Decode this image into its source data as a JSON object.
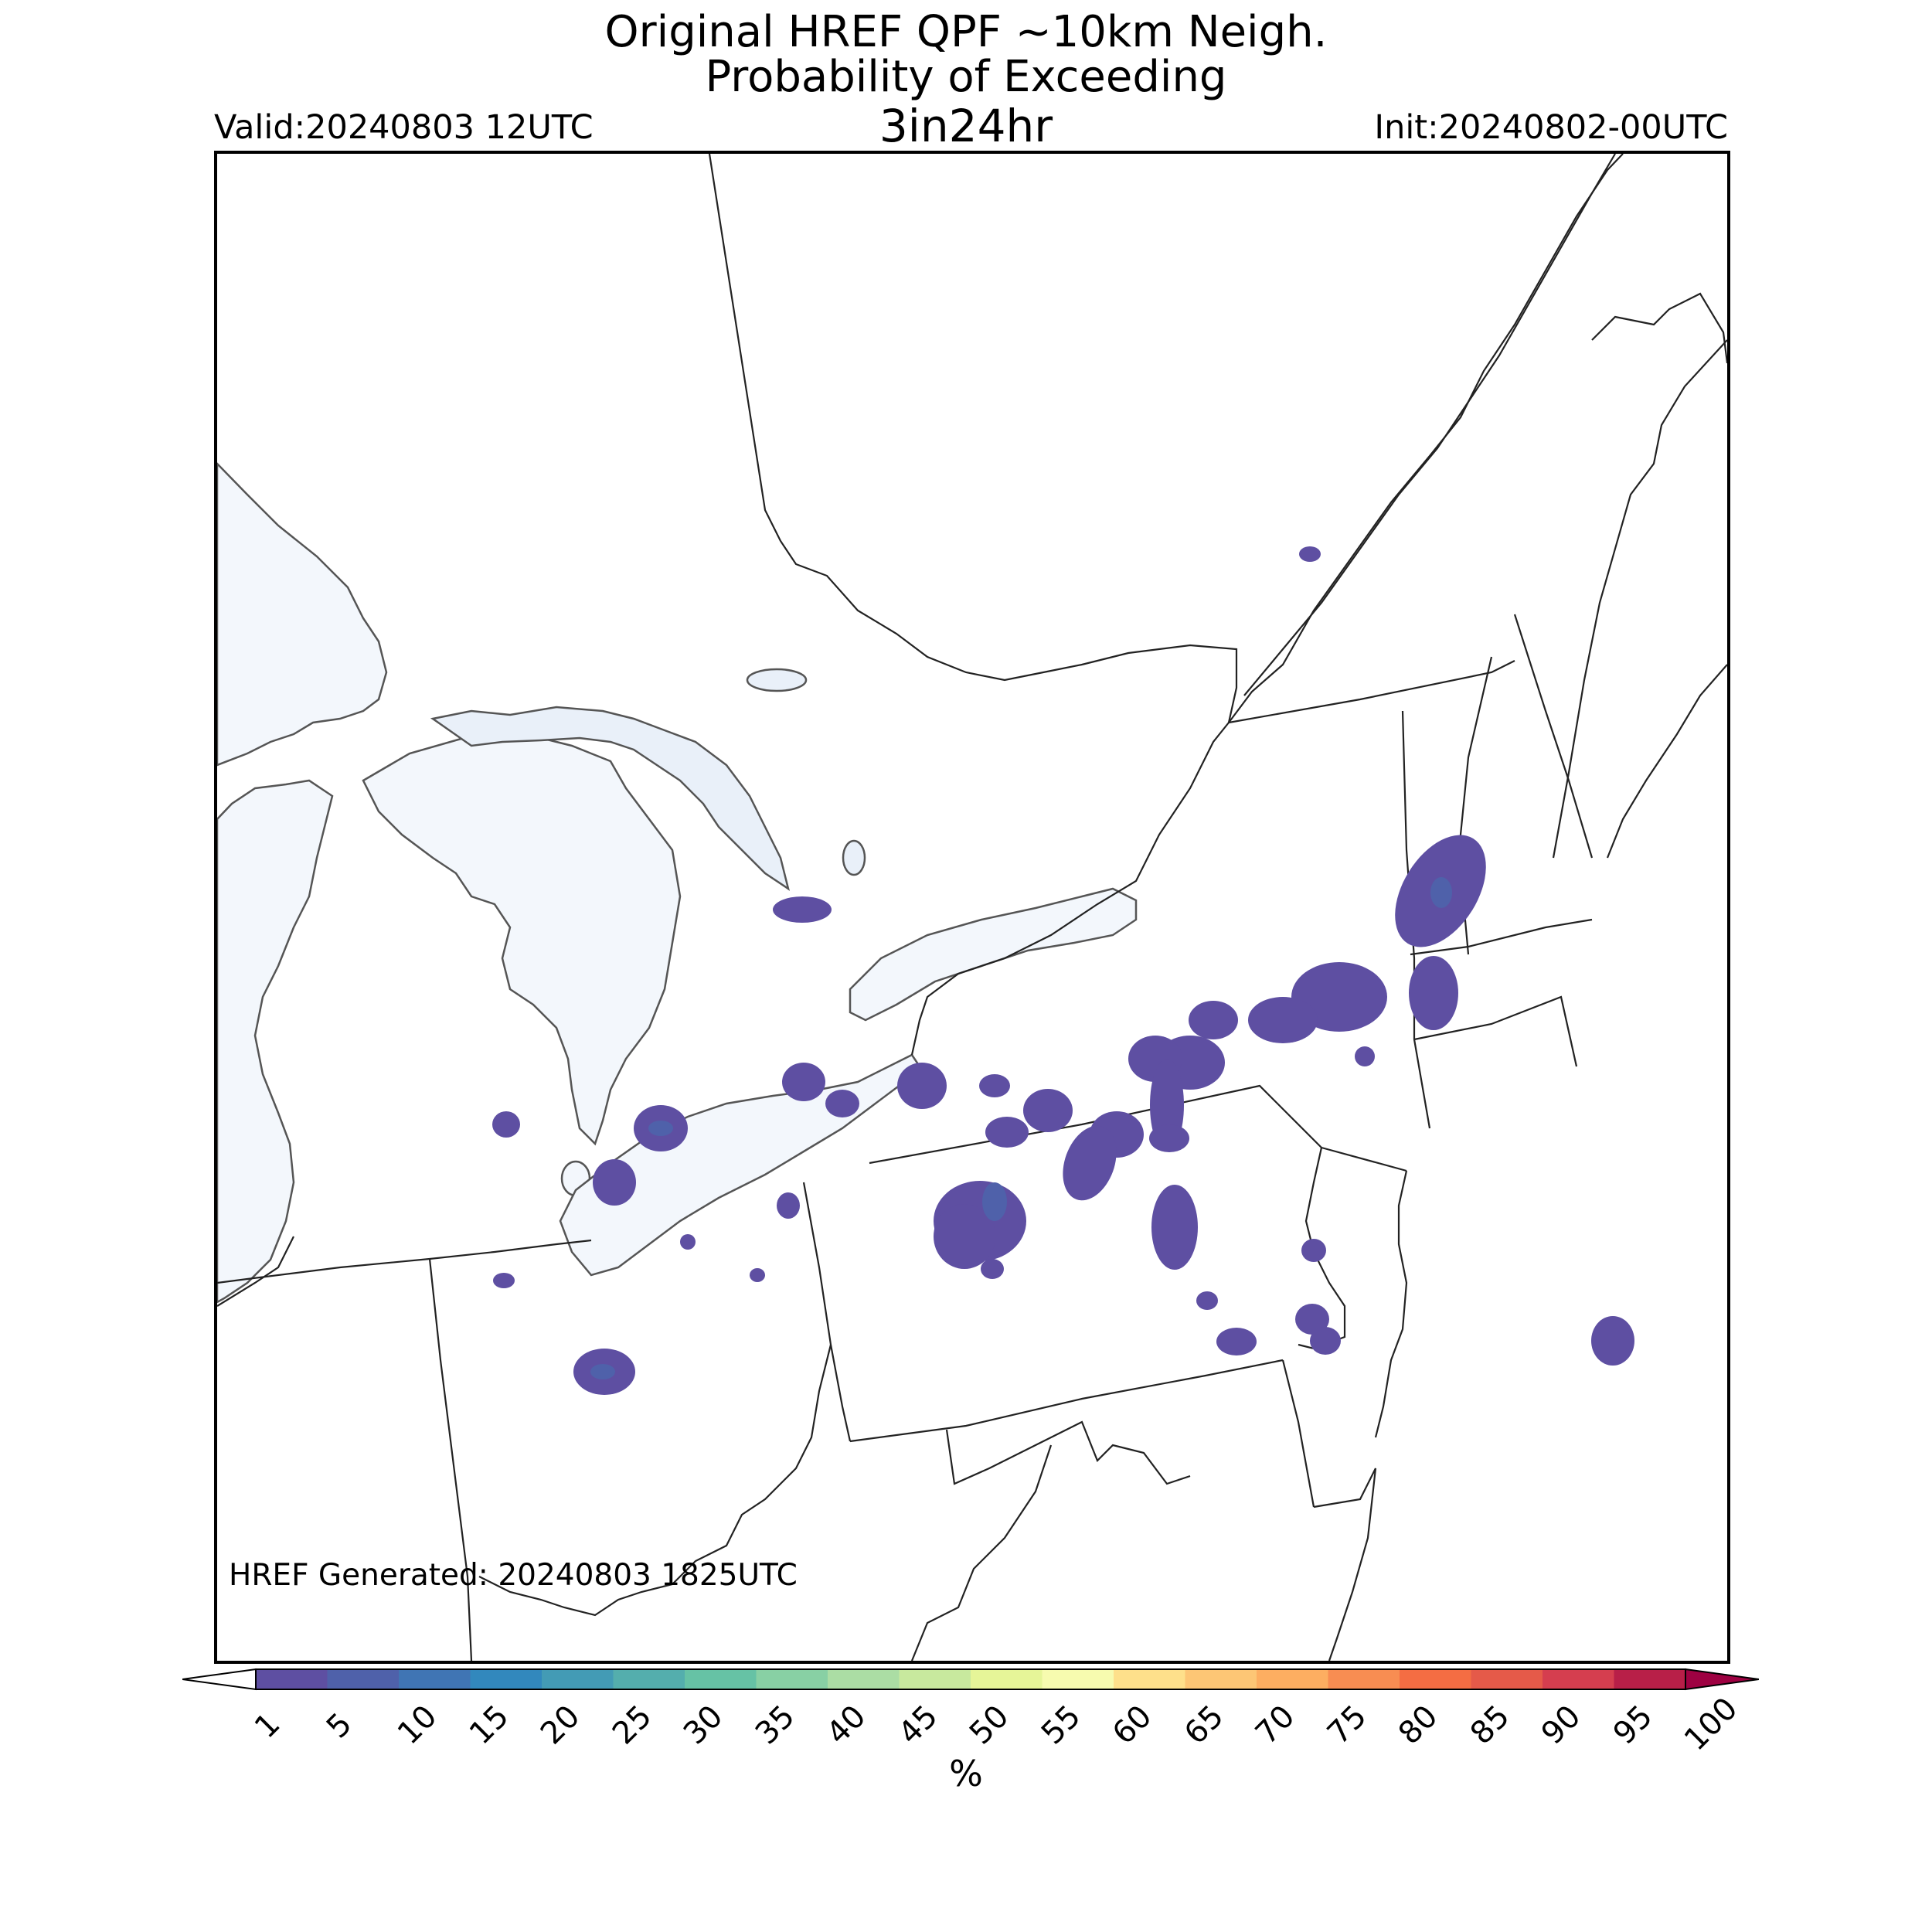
{
  "title": {
    "line1": "Original HREF QPF ~10km Neigh.",
    "line2": "Probability of Exceeding",
    "line3": "3in24hr"
  },
  "valid": "Valid:20240803 12UTC",
  "init": "Init:20240802-00UTC",
  "generated": "HREF Generated: 20240803 1825UTC",
  "colorbar": {
    "ticks": [
      "1",
      "5",
      "10",
      "15",
      "20",
      "25",
      "30",
      "35",
      "40",
      "45",
      "50",
      "55",
      "60",
      "65",
      "70",
      "75",
      "80",
      "85",
      "90",
      "95",
      "100"
    ],
    "colors": [
      "#5e4fa2",
      "#4f61aa",
      "#4075b4",
      "#3288bd",
      "#439bb5",
      "#54aead",
      "#66c2a5",
      "#88d0a4",
      "#abdda4",
      "#c8e99e",
      "#e6f598",
      "#f7fbaf",
      "#fee08b",
      "#fdc675",
      "#fdae61",
      "#f88d52",
      "#f46d43",
      "#e55a49",
      "#d53e4f",
      "#b81f48",
      "#9e0142"
    ],
    "under_color": "#ffffff",
    "over_color": "#9e0142",
    "units": "%"
  },
  "map_colors": {
    "water": "#f3f7fc",
    "water_north": "#e9f0f9",
    "prob_low": "#5e4fa2",
    "prob_mid": "#4f61aa",
    "border": "#222222"
  }
}
